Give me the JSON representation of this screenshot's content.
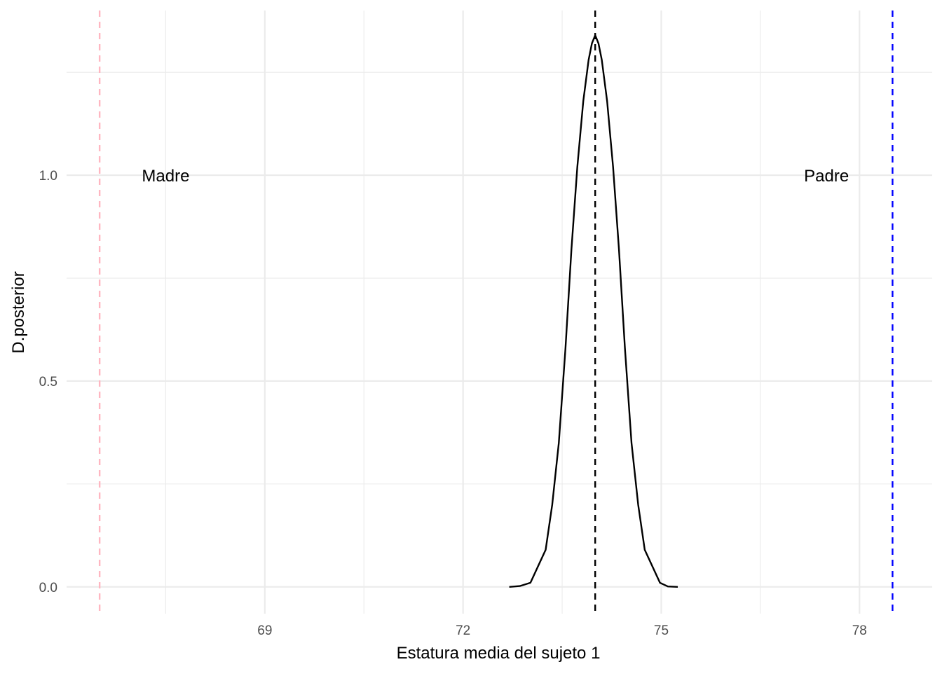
{
  "chart_data": {
    "type": "line",
    "title": "",
    "xlabel": "Estatura media del sujeto 1",
    "ylabel": "D.posterior",
    "xlim": [
      66.0,
      79.1
    ],
    "ylim": [
      -0.065,
      1.4
    ],
    "x_ticks": [
      69,
      72,
      75,
      78
    ],
    "x_tick_labels": [
      "69",
      "72",
      "75",
      "78"
    ],
    "x_minor_ticks": [
      67.5,
      70.5,
      73.5,
      76.5
    ],
    "y_ticks": [
      0.0,
      0.5,
      1.0
    ],
    "y_tick_labels": [
      "0.0",
      "0.5",
      "1.0"
    ],
    "y_minor_ticks": [
      0.25,
      0.75,
      1.25
    ],
    "grid": true,
    "series": [
      {
        "color": "#000000",
        "x": [
          72.7,
          72.86,
          73.02,
          73.25,
          73.35,
          73.45,
          73.55,
          73.64,
          73.73,
          73.82,
          73.9,
          73.95,
          74.0,
          74.05,
          74.1,
          74.18,
          74.27,
          74.36,
          74.45,
          74.55,
          74.65,
          74.75,
          74.98,
          75.1,
          75.25
        ],
        "y": [
          0.0,
          0.002,
          0.01,
          0.09,
          0.2,
          0.35,
          0.58,
          0.82,
          1.02,
          1.18,
          1.28,
          1.32,
          1.34,
          1.32,
          1.28,
          1.18,
          1.02,
          0.82,
          0.58,
          0.35,
          0.2,
          0.09,
          0.01,
          0.001,
          0.0
        ]
      }
    ],
    "reference_lines": [
      {
        "x": 66.5,
        "color": "#ffb6c1",
        "style": "dashed"
      },
      {
        "x": 74.0,
        "color": "#000000",
        "style": "dashed"
      },
      {
        "x": 78.5,
        "color": "#0000ff",
        "style": "dashed"
      }
    ],
    "annotations": [
      {
        "text": "Madre",
        "x": 67.5,
        "y": 1.0
      },
      {
        "text": "Padre",
        "x": 77.5,
        "y": 1.0
      }
    ]
  }
}
